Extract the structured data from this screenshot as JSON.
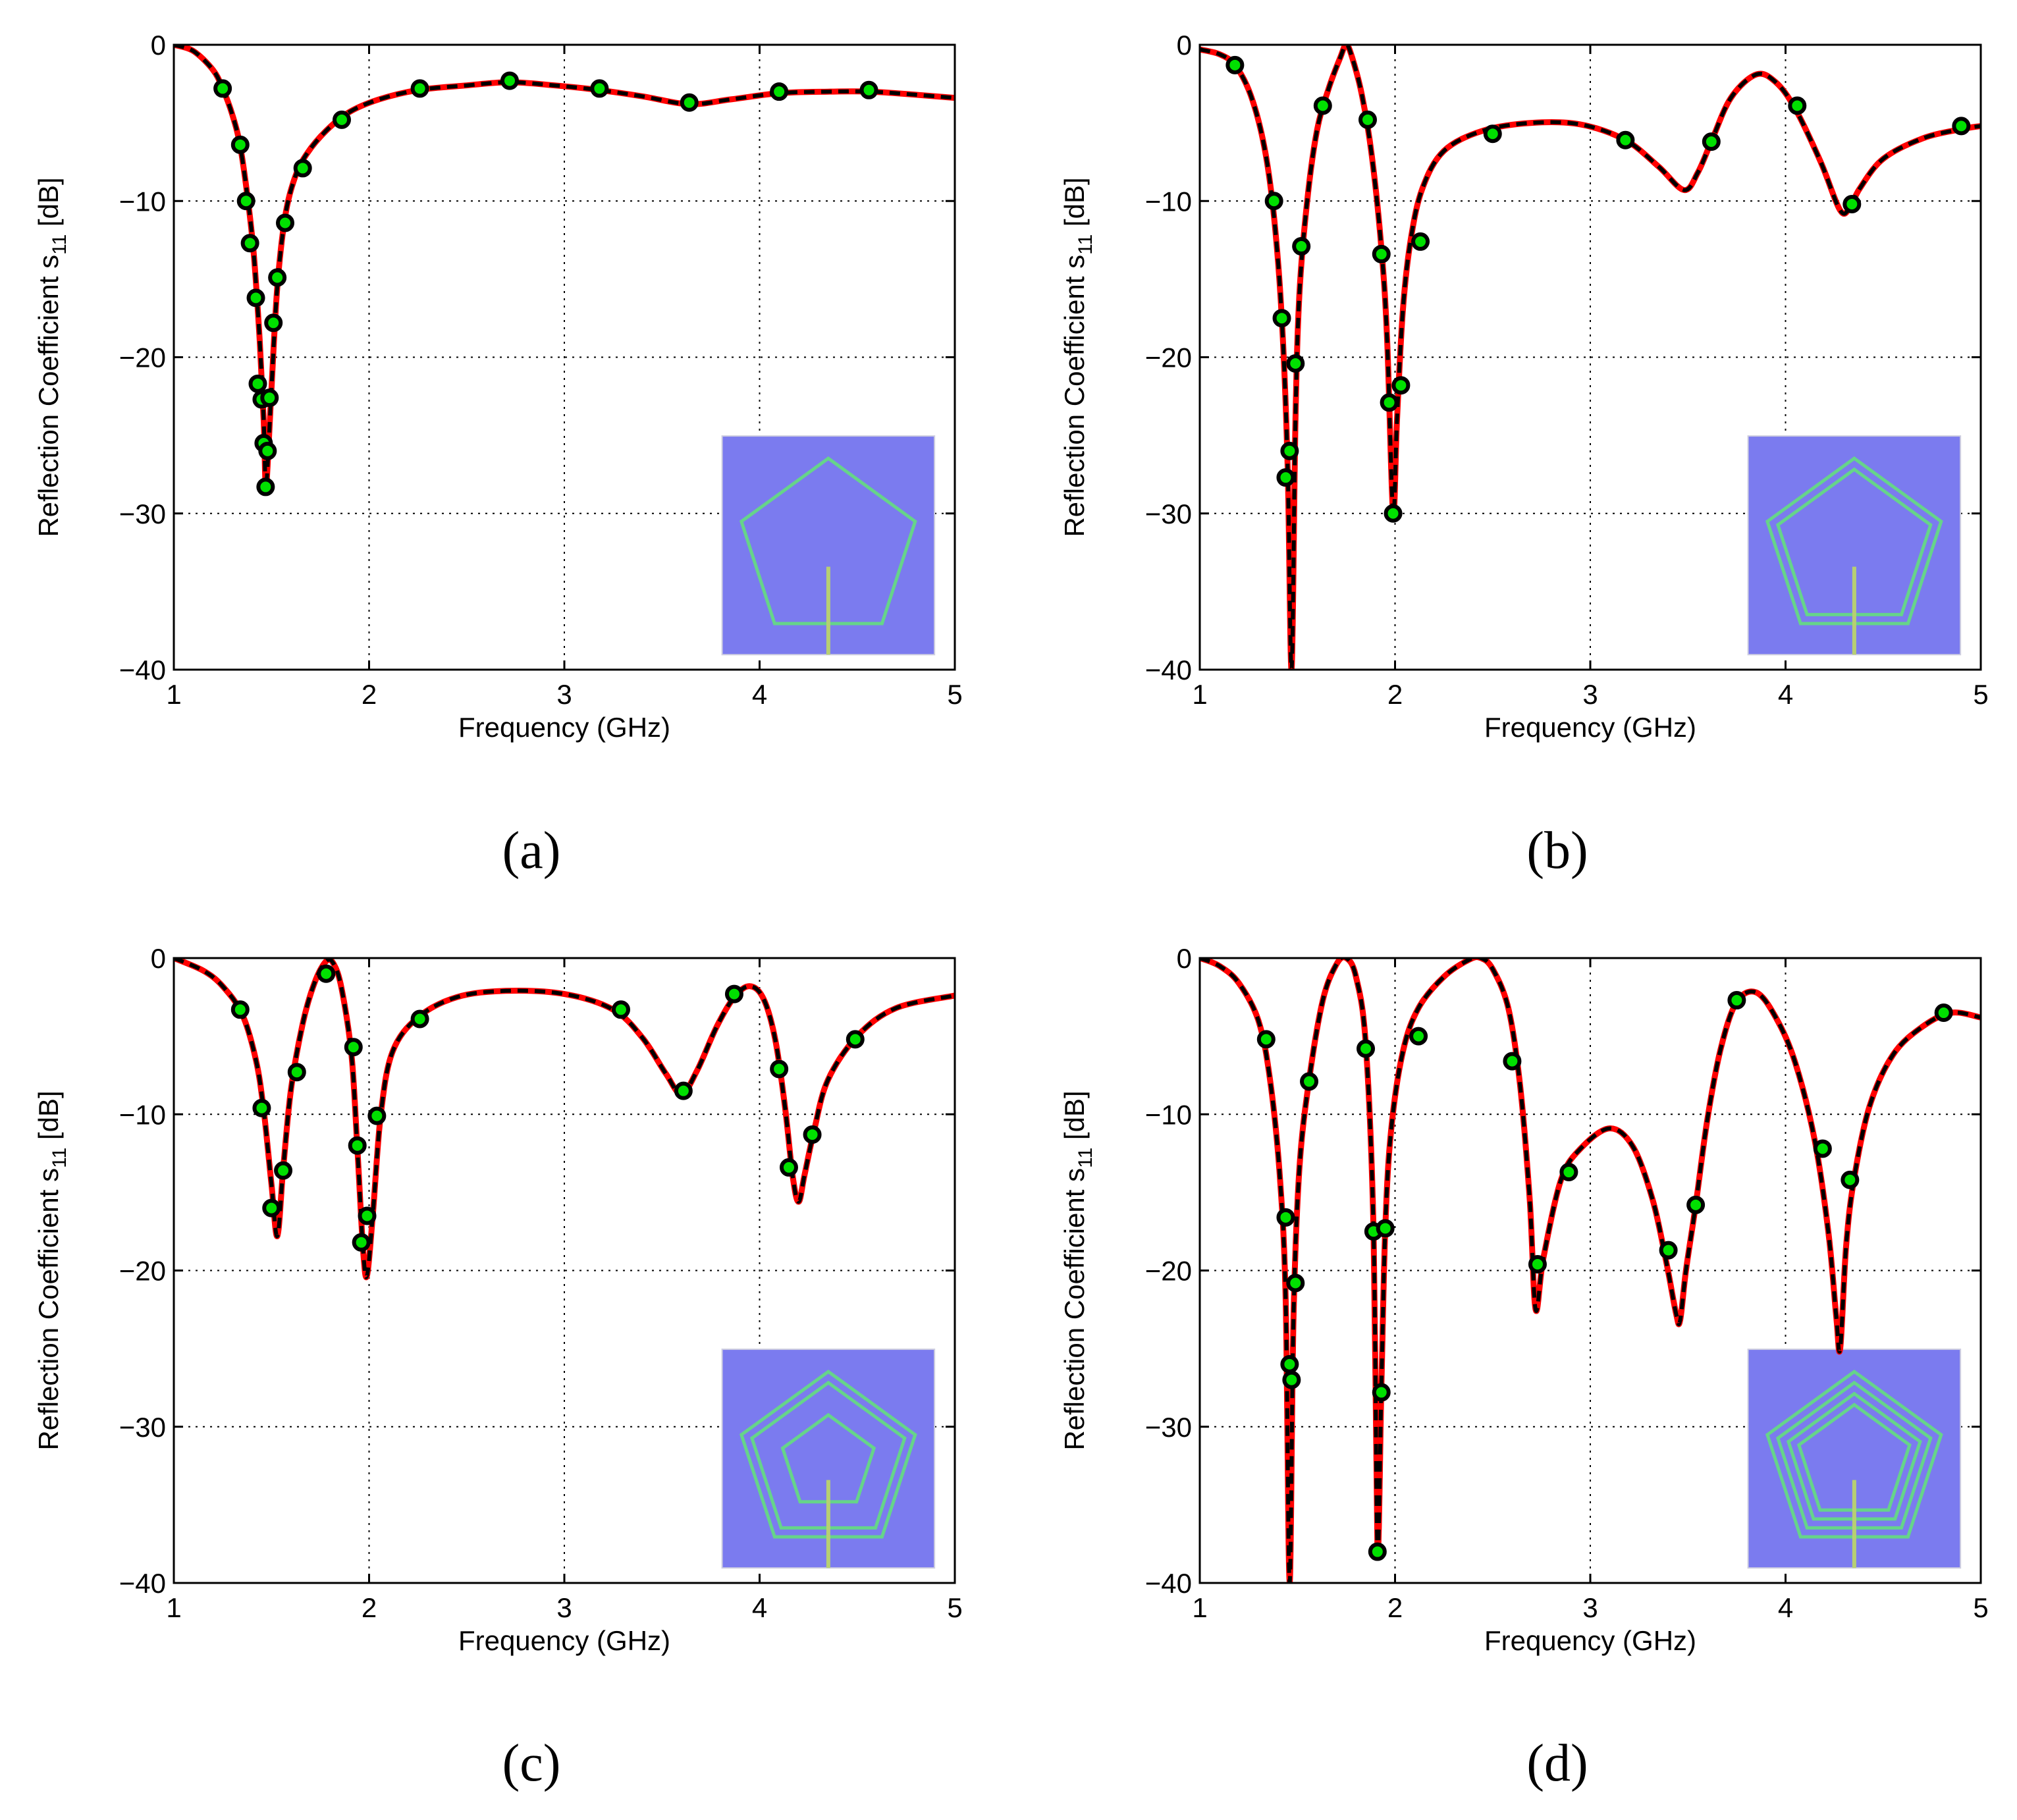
{
  "figure": {
    "colors": {
      "simulated_line": "#ff0000",
      "model_line": "#000000",
      "marker_face": "#00e000",
      "marker_edge": "#000000",
      "inset_background": "#7b7bef",
      "inset_trace": "#66d48a",
      "inset_feed": "#b7cf73",
      "grid": "#000000"
    }
  },
  "chart_data": [
    {
      "panel": "a",
      "type": "line",
      "caption": "(a)",
      "xlabel": "Frequency (GHz)",
      "ylabel_main": "Reflection Coefficient s",
      "ylabel_sub": "11",
      "ylabel_unit": " [dB]",
      "xlim": [
        1,
        5
      ],
      "ylim": [
        -40,
        0
      ],
      "xticks": [
        1,
        2,
        3,
        4,
        5
      ],
      "yticks": [
        0,
        -10,
        -20,
        -30,
        -40
      ],
      "xtick_labels": [
        "1",
        "2",
        "3",
        "4",
        "5"
      ],
      "ytick_labels": [
        "0",
        "−10",
        "−20",
        "−30",
        "−40"
      ],
      "grid": true,
      "inset_rings": 1,
      "curve": {
        "x": [
          1.0,
          1.1,
          1.2,
          1.25,
          1.3,
          1.34,
          1.38,
          1.41,
          1.44,
          1.46,
          1.47,
          1.48,
          1.5,
          1.53,
          1.57,
          1.62,
          1.68,
          1.78,
          1.9,
          2.05,
          2.25,
          2.5,
          2.72,
          2.95,
          3.18,
          3.4,
          3.64,
          3.85,
          4.1,
          4.35,
          4.57,
          4.8,
          5.0
        ],
        "y": [
          0,
          -0.4,
          -1.6,
          -2.8,
          -4.5,
          -6.5,
          -10,
          -13.5,
          -19,
          -24,
          -28.3,
          -27,
          -22,
          -15.5,
          -11,
          -8.5,
          -7,
          -5.5,
          -4.3,
          -3.5,
          -2.9,
          -2.6,
          -2.4,
          -2.6,
          -2.9,
          -3.3,
          -3.8,
          -3.5,
          -3.1,
          -3.0,
          -3.0,
          -3.2,
          -3.4
        ]
      },
      "markers": {
        "x": [
          1.25,
          1.34,
          1.37,
          1.39,
          1.42,
          1.43,
          1.45,
          1.46,
          1.47,
          1.48,
          1.49,
          1.51,
          1.53,
          1.57,
          1.66,
          1.86,
          2.26,
          2.72,
          3.18,
          3.64,
          4.1,
          4.56
        ],
        "y": [
          -2.8,
          -6.4,
          -10,
          -12.7,
          -16.2,
          -21.7,
          -22.7,
          -25.5,
          -28.3,
          -26,
          -22.6,
          -17.8,
          -14.9,
          -11.4,
          -7.9,
          -4.8,
          -2.8,
          -2.3,
          -2.8,
          -3.7,
          -3.0,
          -2.9
        ]
      }
    },
    {
      "panel": "b",
      "type": "line",
      "caption": "(b)",
      "xlabel": "Frequency (GHz)",
      "ylabel_main": "Reflection Coefficient s",
      "ylabel_sub": "11",
      "ylabel_unit": " [dB]",
      "xlim": [
        1,
        5
      ],
      "ylim": [
        -40,
        0
      ],
      "xticks": [
        1,
        2,
        3,
        4,
        5
      ],
      "yticks": [
        0,
        -10,
        -20,
        -30,
        -40
      ],
      "xtick_labels": [
        "1",
        "2",
        "3",
        "4",
        "5"
      ],
      "ytick_labels": [
        "0",
        "−10",
        "−20",
        "−30",
        "−40"
      ],
      "grid": true,
      "inset_rings": 2,
      "curve": {
        "x": [
          1.0,
          1.1,
          1.18,
          1.26,
          1.33,
          1.38,
          1.42,
          1.45,
          1.47,
          1.49,
          1.51,
          1.55,
          1.6,
          1.66,
          1.72,
          1.75,
          1.78,
          1.83,
          1.88,
          1.93,
          1.96,
          1.99,
          2.01,
          2.04,
          2.08,
          2.14,
          2.25,
          2.45,
          2.7,
          2.95,
          3.18,
          3.35,
          3.48,
          3.55,
          3.62,
          3.72,
          3.85,
          3.95,
          4.05,
          4.18,
          4.28,
          4.33,
          4.38,
          4.5,
          4.7,
          4.9,
          5.0
        ],
        "y": [
          -0.3,
          -0.6,
          -1.3,
          -3.2,
          -6.5,
          -11,
          -17.5,
          -27,
          -40,
          -24,
          -16,
          -10,
          -5.5,
          -2.8,
          -0.8,
          0,
          -0.8,
          -3.2,
          -7,
          -13,
          -19,
          -30,
          -24,
          -17,
          -12.5,
          -9.2,
          -6.8,
          -5.5,
          -5,
          -5.1,
          -6.1,
          -7.8,
          -9.3,
          -8.2,
          -6.2,
          -3.4,
          -1.9,
          -2.4,
          -4.1,
          -7.5,
          -10.6,
          -10.4,
          -9.2,
          -7.3,
          -6,
          -5.4,
          -5.2
        ]
      },
      "markers": {
        "x": [
          1.18,
          1.38,
          1.42,
          1.44,
          1.46,
          1.49,
          1.52,
          1.63,
          1.86,
          1.93,
          1.97,
          1.99,
          2.03,
          2.13,
          2.5,
          3.18,
          3.62,
          4.06,
          4.34,
          4.9
        ],
        "y": [
          -1.3,
          -10,
          -17.5,
          -27.7,
          -26,
          -20.4,
          -12.9,
          -3.9,
          -4.8,
          -13.4,
          -22.9,
          -30,
          -21.8,
          -12.6,
          -5.7,
          -6.1,
          -6.2,
          -3.9,
          -10.2,
          -5.2
        ]
      }
    },
    {
      "panel": "c",
      "type": "line",
      "caption": "(c)",
      "xlabel": "Frequency (GHz)",
      "ylabel_main": "Reflection Coefficient s",
      "ylabel_sub": "11",
      "ylabel_unit": " [dB]",
      "xlim": [
        1,
        5
      ],
      "ylim": [
        -40,
        0
      ],
      "xticks": [
        1,
        2,
        3,
        4,
        5
      ],
      "yticks": [
        0,
        -10,
        -20,
        -30,
        -40
      ],
      "xtick_labels": [
        "1",
        "2",
        "3",
        "4",
        "5"
      ],
      "ytick_labels": [
        "0",
        "−10",
        "−20",
        "−30",
        "−40"
      ],
      "grid": true,
      "inset_rings": 3,
      "curve": {
        "x": [
          1.0,
          1.15,
          1.25,
          1.35,
          1.42,
          1.46,
          1.5,
          1.53,
          1.56,
          1.6,
          1.66,
          1.72,
          1.78,
          1.82,
          1.86,
          1.91,
          1.94,
          1.97,
          1.99,
          2.02,
          2.06,
          2.12,
          2.25,
          2.45,
          2.7,
          3.0,
          3.25,
          3.4,
          3.52,
          3.6,
          3.68,
          3.78,
          3.87,
          3.95,
          4.02,
          4.08,
          4.13,
          4.17,
          4.2,
          4.23,
          4.28,
          4.35,
          4.5,
          4.7,
          5.0
        ],
        "y": [
          0,
          -0.8,
          -1.8,
          -3.6,
          -6.5,
          -9.7,
          -14.5,
          -17.8,
          -13.5,
          -8.4,
          -4.2,
          -1.6,
          -0.2,
          -0.4,
          -2,
          -6.2,
          -12.2,
          -18.8,
          -20.3,
          -16.3,
          -10,
          -6,
          -3.8,
          -2.5,
          -2.1,
          -2.3,
          -3.3,
          -5.1,
          -7.4,
          -8.7,
          -7.2,
          -4.4,
          -2.5,
          -1.8,
          -2.6,
          -5.2,
          -9.5,
          -14,
          -15.6,
          -13.9,
          -11,
          -7.8,
          -5,
          -3.2,
          -2.4
        ]
      },
      "markers": {
        "x": [
          1.34,
          1.45,
          1.5,
          1.56,
          1.63,
          1.78,
          1.92,
          1.94,
          1.96,
          1.99,
          2.04,
          2.26,
          3.29,
          3.61,
          3.87,
          4.1,
          4.15,
          4.27,
          4.49
        ],
        "y": [
          -3.3,
          -9.6,
          -16,
          -13.6,
          -7.3,
          -1,
          -5.7,
          -12,
          -18.2,
          -16.5,
          -10.1,
          -3.9,
          -3.3,
          -8.5,
          -2.3,
          -7.1,
          -13.4,
          -11.3,
          -5.2
        ]
      }
    },
    {
      "panel": "d",
      "type": "line",
      "caption": "(d)",
      "xlabel": "Frequency (GHz)",
      "ylabel_main": "Reflection Coefficient s",
      "ylabel_sub": "11",
      "ylabel_unit": " [dB]",
      "xlim": [
        1,
        5
      ],
      "ylim": [
        -40,
        0
      ],
      "xticks": [
        1,
        2,
        3,
        4,
        5
      ],
      "yticks": [
        0,
        -10,
        -20,
        -30,
        -40
      ],
      "xtick_labels": [
        "1",
        "2",
        "3",
        "4",
        "5"
      ],
      "ytick_labels": [
        "0",
        "−10",
        "−20",
        "−30",
        "−40"
      ],
      "grid": true,
      "inset_rings": 4,
      "curve": {
        "x": [
          1.0,
          1.1,
          1.2,
          1.3,
          1.36,
          1.41,
          1.44,
          1.46,
          1.48,
          1.51,
          1.56,
          1.63,
          1.7,
          1.75,
          1.8,
          1.85,
          1.89,
          1.91,
          1.93,
          1.95,
          1.98,
          2.04,
          2.12,
          2.25,
          2.38,
          2.44,
          2.5,
          2.58,
          2.64,
          2.69,
          2.72,
          2.76,
          2.85,
          2.95,
          3.1,
          3.22,
          3.32,
          3.39,
          3.44,
          3.46,
          3.49,
          3.54,
          3.6,
          3.67,
          3.75,
          3.85,
          3.95,
          4.05,
          4.15,
          4.22,
          4.26,
          4.28,
          4.31,
          4.35,
          4.43,
          4.55,
          4.7,
          4.85,
          5.0
        ],
        "y": [
          0,
          -0.5,
          -1.6,
          -4,
          -7.8,
          -14,
          -22,
          -40,
          -23,
          -13.5,
          -7.8,
          -2.7,
          -0.4,
          0,
          -1.2,
          -5.5,
          -17.5,
          -37.8,
          -27.5,
          -17.3,
          -11,
          -6,
          -3.2,
          -1.2,
          -0.1,
          0,
          -0.7,
          -3.2,
          -8.1,
          -15.5,
          -22.5,
          -19.2,
          -14.2,
          -12.2,
          -10.9,
          -12.1,
          -15.5,
          -19.5,
          -22.8,
          -23.2,
          -20,
          -15.8,
          -10.3,
          -5.7,
          -2.8,
          -2.2,
          -3.8,
          -6.7,
          -11.7,
          -17.6,
          -23,
          -25,
          -18.5,
          -14.2,
          -9.5,
          -6.2,
          -4.4,
          -3.5,
          -3.8
        ]
      },
      "markers": {
        "x": [
          1.34,
          1.44,
          1.46,
          1.47,
          1.49,
          1.56,
          1.85,
          1.89,
          1.91,
          1.93,
          1.95,
          2.12,
          2.6,
          2.73,
          2.89,
          3.4,
          3.54,
          3.75,
          4.19,
          4.33,
          4.81
        ],
        "y": [
          -5.2,
          -16.6,
          -26,
          -27,
          -20.8,
          -7.9,
          -5.8,
          -17.5,
          -38,
          -27.8,
          -17.3,
          -5,
          -6.6,
          -19.6,
          -13.7,
          -18.7,
          -15.8,
          -2.7,
          -12.2,
          -14.2,
          -3.5
        ]
      }
    }
  ]
}
